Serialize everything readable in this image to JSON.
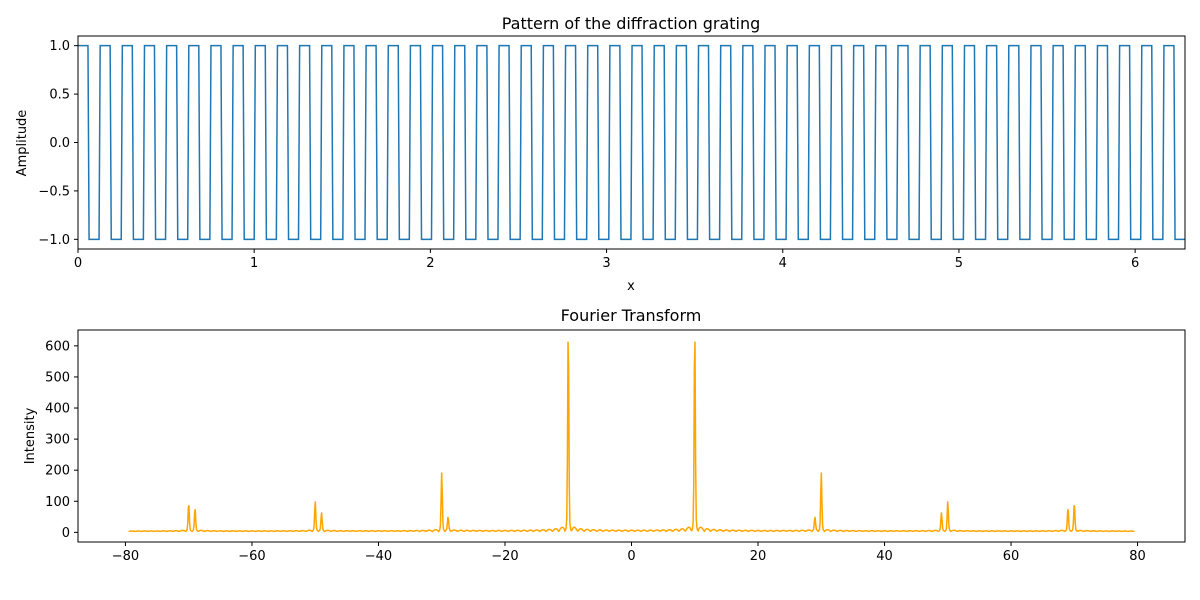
{
  "colors": {
    "square_wave": "#1f77b4",
    "spectrum": "#ffa500",
    "axes": "#000000",
    "background": "#ffffff"
  },
  "chart_data": [
    {
      "type": "line",
      "title": "Pattern of the diffraction grating",
      "xlabel": "x",
      "ylabel": "Amplitude",
      "xlim": [
        0,
        6.283
      ],
      "ylim": [
        -1.1,
        1.1
      ],
      "xticks": [
        0,
        1,
        2,
        3,
        4,
        5,
        6
      ],
      "xtick_labels": [
        "0",
        "1",
        "2",
        "3",
        "4",
        "5",
        "6"
      ],
      "yticks": [
        1.0,
        0.5,
        0.0,
        -0.5,
        -1.0
      ],
      "ytick_labels": [
        "1.0",
        "0.5",
        "0.0",
        "−0.5",
        "−1.0"
      ],
      "grid": false,
      "series": [
        {
          "waveform": "square",
          "frequency_cycles": 50,
          "high": 1.0,
          "low": -1.0,
          "x_range": [
            0,
            6.283
          ],
          "samples": 1000
        }
      ]
    },
    {
      "type": "line",
      "title": "Fourier Transform",
      "xlabel": "",
      "ylabel": "Intensity",
      "xlim": [
        -87.5,
        87.5
      ],
      "ylim": [
        -31,
        651
      ],
      "xticks": [
        -80,
        -60,
        -40,
        -20,
        0,
        20,
        40,
        60,
        80
      ],
      "xtick_labels": [
        "−80",
        "−60",
        "−40",
        "−20",
        "0",
        "20",
        "40",
        "60",
        "80"
      ],
      "yticks": [
        0,
        100,
        200,
        300,
        400,
        500,
        600
      ],
      "ytick_labels": [
        "0",
        "100",
        "200",
        "300",
        "400",
        "500",
        "600"
      ],
      "grid": false,
      "series": [
        {
          "x_range": [
            -79.5,
            79.5
          ],
          "baseline": 3,
          "peaks": [
            {
              "x": -70,
              "y": 85
            },
            {
              "x": -69,
              "y": 70
            },
            {
              "x": -50,
              "y": 90
            },
            {
              "x": -49,
              "y": 55
            },
            {
              "x": -30,
              "y": 178
            },
            {
              "x": -29,
              "y": 40
            },
            {
              "x": -10,
              "y": 625
            },
            {
              "x": 10,
              "y": 625
            },
            {
              "x": 30,
              "y": 178
            },
            {
              "x": 29,
              "y": 40
            },
            {
              "x": 50,
              "y": 90
            },
            {
              "x": 49,
              "y": 55
            },
            {
              "x": 70,
              "y": 85
            },
            {
              "x": 69,
              "y": 70
            }
          ]
        }
      ]
    }
  ]
}
